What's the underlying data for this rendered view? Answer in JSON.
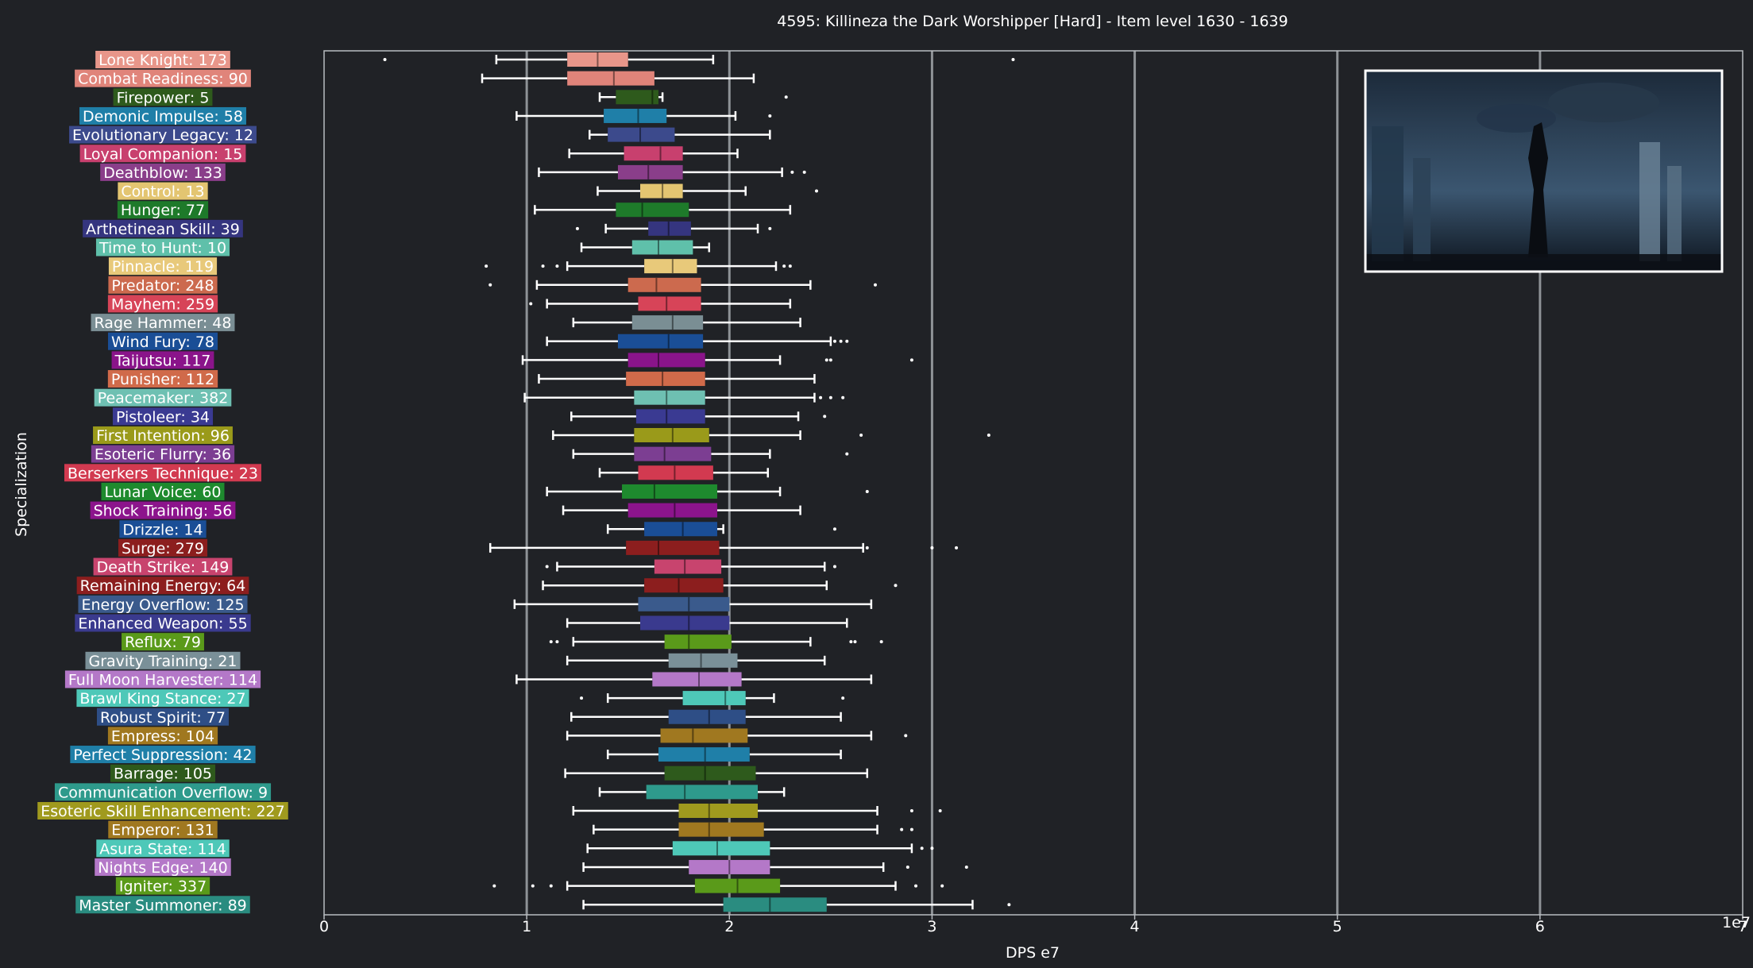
{
  "chart_data": {
    "type": "box",
    "title": "4595: Killineza the Dark Worshipper [Hard] - Item level 1630 - 1639",
    "xlabel": "DPS e7",
    "ylabel": "Specialization",
    "x_ticks": [
      "0",
      "1",
      "2",
      "3",
      "4",
      "5",
      "6",
      "7"
    ],
    "x_range": [
      0,
      7
    ],
    "x_offset_label": "1e7",
    "grid": "vertical",
    "inset": "boss image, top-right",
    "series": [
      {
        "label": "Lone Knight: 173",
        "color": "#E8968A",
        "q1": 1.2,
        "median": 1.35,
        "q3": 1.5,
        "wlo": 0.85,
        "whi": 1.92,
        "outliers": [
          0.3,
          3.4
        ]
      },
      {
        "label": "Combat Readiness: 90",
        "color": "#E0847A",
        "q1": 1.2,
        "median": 1.43,
        "q3": 1.63,
        "wlo": 0.78,
        "whi": 2.12,
        "outliers": []
      },
      {
        "label": "Firepower: 5",
        "color": "#2E5A1C",
        "q1": 1.44,
        "median": 1.62,
        "q3": 1.65,
        "wlo": 1.36,
        "whi": 1.67,
        "outliers": [
          2.28
        ]
      },
      {
        "label": "Demonic Impulse: 58",
        "color": "#1F7FA8",
        "q1": 1.38,
        "median": 1.55,
        "q3": 1.69,
        "wlo": 0.95,
        "whi": 2.03,
        "outliers": [
          2.2
        ]
      },
      {
        "label": "Evolutionary Legacy: 12",
        "color": "#3C4A8C",
        "q1": 1.4,
        "median": 1.56,
        "q3": 1.73,
        "wlo": 1.31,
        "whi": 2.2,
        "outliers": []
      },
      {
        "label": "Loyal Companion: 15",
        "color": "#C8406E",
        "q1": 1.48,
        "median": 1.66,
        "q3": 1.77,
        "wlo": 1.21,
        "whi": 2.04,
        "outliers": []
      },
      {
        "label": "Deathblow: 133",
        "color": "#8A3E8A",
        "q1": 1.45,
        "median": 1.6,
        "q3": 1.77,
        "wlo": 1.06,
        "whi": 2.26,
        "outliers": [
          2.31,
          2.37
        ]
      },
      {
        "label": "Control: 13",
        "color": "#E3C571",
        "q1": 1.56,
        "median": 1.67,
        "q3": 1.77,
        "wlo": 1.35,
        "whi": 2.08,
        "outliers": [
          2.43
        ]
      },
      {
        "label": "Hunger: 77",
        "color": "#1E7A2A",
        "q1": 1.44,
        "median": 1.57,
        "q3": 1.8,
        "wlo": 1.04,
        "whi": 2.3,
        "outliers": []
      },
      {
        "label": "Arthetinean Skill: 39",
        "color": "#35357F",
        "q1": 1.6,
        "median": 1.7,
        "q3": 1.81,
        "wlo": 1.39,
        "whi": 2.14,
        "outliers": [
          1.25,
          2.2
        ]
      },
      {
        "label": "Time to Hunt: 10",
        "color": "#5FC0AA",
        "q1": 1.52,
        "median": 1.65,
        "q3": 1.82,
        "wlo": 1.27,
        "whi": 1.9,
        "outliers": []
      },
      {
        "label": "Pinnacle: 119",
        "color": "#E8C97A",
        "q1": 1.58,
        "median": 1.72,
        "q3": 1.84,
        "wlo": 1.2,
        "whi": 2.23,
        "outliers": [
          0.8,
          1.08,
          1.15,
          2.27,
          2.3
        ]
      },
      {
        "label": "Predator: 248",
        "color": "#CC6A4E",
        "q1": 1.5,
        "median": 1.64,
        "q3": 1.86,
        "wlo": 1.05,
        "whi": 2.4,
        "outliers": [
          0.82,
          2.72
        ]
      },
      {
        "label": "Mayhem: 259",
        "color": "#D74458",
        "q1": 1.55,
        "median": 1.69,
        "q3": 1.86,
        "wlo": 1.1,
        "whi": 2.3,
        "outliers": [
          1.02
        ]
      },
      {
        "label": "Rage Hammer: 48",
        "color": "#7A8E94",
        "q1": 1.52,
        "median": 1.72,
        "q3": 1.87,
        "wlo": 1.23,
        "whi": 2.35,
        "outliers": []
      },
      {
        "label": "Wind Fury: 78",
        "color": "#1A4E96",
        "q1": 1.45,
        "median": 1.7,
        "q3": 1.87,
        "wlo": 1.1,
        "whi": 2.5,
        "outliers": [
          2.52,
          2.55,
          2.58
        ]
      },
      {
        "label": "Taijutsu: 117",
        "color": "#8A148A",
        "q1": 1.5,
        "median": 1.65,
        "q3": 1.88,
        "wlo": 0.98,
        "whi": 2.25,
        "outliers": [
          2.48,
          2.5,
          2.9
        ]
      },
      {
        "label": "Punisher: 112",
        "color": "#D06A4A",
        "q1": 1.49,
        "median": 1.67,
        "q3": 1.88,
        "wlo": 1.06,
        "whi": 2.42,
        "outliers": []
      },
      {
        "label": "Peacemaker: 382",
        "color": "#6EC0B2",
        "q1": 1.53,
        "median": 1.69,
        "q3": 1.88,
        "wlo": 0.99,
        "whi": 2.42,
        "outliers": [
          2.45,
          2.5,
          2.56
        ]
      },
      {
        "label": "Pistoleer: 34",
        "color": "#3A3A92",
        "q1": 1.54,
        "median": 1.69,
        "q3": 1.88,
        "wlo": 1.22,
        "whi": 2.34,
        "outliers": [
          2.47
        ]
      },
      {
        "label": "First Intention: 96",
        "color": "#9A9A1A",
        "q1": 1.53,
        "median": 1.72,
        "q3": 1.9,
        "wlo": 1.13,
        "whi": 2.35,
        "outliers": [
          2.65,
          3.28
        ]
      },
      {
        "label": "Esoteric Flurry: 36",
        "color": "#7C3E92",
        "q1": 1.53,
        "median": 1.68,
        "q3": 1.91,
        "wlo": 1.23,
        "whi": 2.2,
        "outliers": [
          2.58
        ]
      },
      {
        "label": "Berserkers Technique: 23",
        "color": "#D23A50",
        "q1": 1.55,
        "median": 1.73,
        "q3": 1.92,
        "wlo": 1.36,
        "whi": 2.19,
        "outliers": []
      },
      {
        "label": "Lunar Voice: 60",
        "color": "#1E8A2E",
        "q1": 1.47,
        "median": 1.63,
        "q3": 1.94,
        "wlo": 1.1,
        "whi": 2.25,
        "outliers": [
          2.68
        ]
      },
      {
        "label": "Shock Training: 56",
        "color": "#8C148C",
        "q1": 1.5,
        "median": 1.73,
        "q3": 1.94,
        "wlo": 1.18,
        "whi": 2.35,
        "outliers": []
      },
      {
        "label": "Drizzle: 14",
        "color": "#1A4E96",
        "q1": 1.58,
        "median": 1.77,
        "q3": 1.94,
        "wlo": 1.4,
        "whi": 1.97,
        "outliers": [
          2.52
        ]
      },
      {
        "label": "Surge: 279",
        "color": "#8C1E1E",
        "q1": 1.49,
        "median": 1.65,
        "q3": 1.95,
        "wlo": 0.82,
        "whi": 2.66,
        "outliers": [
          2.68,
          3.0,
          3.12
        ]
      },
      {
        "label": "Death Strike: 149",
        "color": "#C8446E",
        "q1": 1.63,
        "median": 1.78,
        "q3": 1.96,
        "wlo": 1.15,
        "whi": 2.47,
        "outliers": [
          1.1,
          2.52
        ]
      },
      {
        "label": "Remaining Energy: 64",
        "color": "#8C1E1E",
        "q1": 1.58,
        "median": 1.75,
        "q3": 1.97,
        "wlo": 1.08,
        "whi": 2.48,
        "outliers": [
          2.82
        ]
      },
      {
        "label": "Energy Overflow: 125",
        "color": "#3A5A8C",
        "q1": 1.55,
        "median": 1.8,
        "q3": 2.0,
        "wlo": 0.94,
        "whi": 2.7,
        "outliers": []
      },
      {
        "label": "Enhanced Weapon: 55",
        "color": "#3A3A8E",
        "q1": 1.56,
        "median": 1.8,
        "q3": 2.0,
        "wlo": 1.2,
        "whi": 2.58,
        "outliers": []
      },
      {
        "label": "Reflux: 79",
        "color": "#5A9A1A",
        "q1": 1.68,
        "median": 1.8,
        "q3": 2.01,
        "wlo": 1.23,
        "whi": 2.4,
        "outliers": [
          1.12,
          1.15,
          2.6,
          2.62,
          2.75
        ]
      },
      {
        "label": "Gravity Training: 21",
        "color": "#7A9098",
        "q1": 1.7,
        "median": 1.86,
        "q3": 2.04,
        "wlo": 1.2,
        "whi": 2.47,
        "outliers": []
      },
      {
        "label": "Full Moon Harvester: 114",
        "color": "#B478C8",
        "q1": 1.62,
        "median": 1.85,
        "q3": 2.06,
        "wlo": 0.95,
        "whi": 2.7,
        "outliers": []
      },
      {
        "label": "Brawl King Stance: 27",
        "color": "#4EC8B8",
        "q1": 1.77,
        "median": 1.98,
        "q3": 2.08,
        "wlo": 1.4,
        "whi": 2.22,
        "outliers": [
          1.27,
          2.56
        ]
      },
      {
        "label": "Robust Spirit: 77",
        "color": "#2E4E86",
        "q1": 1.7,
        "median": 1.9,
        "q3": 2.08,
        "wlo": 1.22,
        "whi": 2.55,
        "outliers": []
      },
      {
        "label": "Empress: 104",
        "color": "#A07820",
        "q1": 1.66,
        "median": 1.82,
        "q3": 2.09,
        "wlo": 1.2,
        "whi": 2.7,
        "outliers": [
          2.87
        ]
      },
      {
        "label": "Perfect Suppression: 42",
        "color": "#1F7FA8",
        "q1": 1.65,
        "median": 1.88,
        "q3": 2.1,
        "wlo": 1.4,
        "whi": 2.55,
        "outliers": []
      },
      {
        "label": "Barrage: 105",
        "color": "#2E5A1C",
        "q1": 1.68,
        "median": 1.88,
        "q3": 2.13,
        "wlo": 1.19,
        "whi": 2.68,
        "outliers": []
      },
      {
        "label": "Communication Overflow: 9",
        "color": "#2E9A8C",
        "q1": 1.59,
        "median": 1.78,
        "q3": 2.14,
        "wlo": 1.36,
        "whi": 2.27,
        "outliers": []
      },
      {
        "label": "Esoteric Skill Enhancement: 227",
        "color": "#A09A1E",
        "q1": 1.75,
        "median": 1.9,
        "q3": 2.14,
        "wlo": 1.23,
        "whi": 2.73,
        "outliers": [
          2.9,
          3.04
        ]
      },
      {
        "label": "Emperor: 131",
        "color": "#A07820",
        "q1": 1.75,
        "median": 1.9,
        "q3": 2.17,
        "wlo": 1.33,
        "whi": 2.73,
        "outliers": [
          2.85,
          2.9
        ]
      },
      {
        "label": "Asura State: 114",
        "color": "#4EC8B8",
        "q1": 1.72,
        "median": 1.94,
        "q3": 2.2,
        "wlo": 1.3,
        "whi": 2.9,
        "outliers": [
          2.95,
          3.0
        ]
      },
      {
        "label": "Nights Edge: 140",
        "color": "#B478C8",
        "q1": 1.8,
        "median": 2.0,
        "q3": 2.2,
        "wlo": 1.28,
        "whi": 2.76,
        "outliers": [
          2.88,
          3.17
        ]
      },
      {
        "label": "Igniter: 337",
        "color": "#5A9A1A",
        "q1": 1.83,
        "median": 2.04,
        "q3": 2.25,
        "wlo": 1.2,
        "whi": 2.82,
        "outliers": [
          0.84,
          1.03,
          1.12,
          2.92,
          3.05
        ]
      },
      {
        "label": "Master Summoner: 89",
        "color": "#2A8C80",
        "q1": 1.97,
        "median": 2.2,
        "q3": 2.48,
        "wlo": 1.28,
        "whi": 3.2,
        "outliers": [
          3.38
        ]
      }
    ]
  }
}
